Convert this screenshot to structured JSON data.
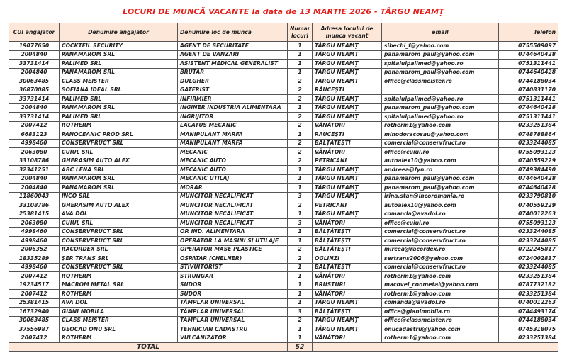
{
  "title": "LOCURI DE MUNCĂ VACANTE  la data de 13 MARTIE 2026 -  TÂRGU NEAMȚ",
  "colors": {
    "title": "#e3211c",
    "header_bg": "#fce7d8"
  },
  "headers": {
    "cui": "CUI angajator",
    "employer": "Denumire angajator",
    "job": "Denumire loc de munca",
    "count": "Numar locuri",
    "address": "Adresa locului de munca vacant",
    "email": "email",
    "phone": "Telefon"
  },
  "rows": [
    [
      "19077650",
      "COCKTEIL SECURITY",
      "AGENT DE SECURITATE",
      "1",
      "TÂRGU NEAMȚ",
      "sibechi_f@yahoo.com",
      "0755509097"
    ],
    [
      "2004840",
      "PANAMAROM SRL",
      "AGENT DE VANZARI",
      "1",
      "TÂRGU NEAMȚ",
      "panamarom_paul@yahoo.com",
      "0744640428"
    ],
    [
      "33731414",
      "PALIMED SRL",
      "ASISTENT MEDICAL GENERALIST",
      "1",
      "TÂRGU NEAMȚ",
      "spitalulpalimed@yahoo.ro",
      "0751311441"
    ],
    [
      "2004840",
      "PANAMAROM SRL",
      "BRUTAR",
      "1",
      "TÂRGU NEAMȚ",
      "panamarom_paul@yahoo.com",
      "0744640428"
    ],
    [
      "30063485",
      "CLASS MEISTER",
      "DULGHER",
      "2",
      "TARGU NEAMT",
      "office@classmeister.ro",
      "0744188034"
    ],
    [
      "36870085",
      "SOFIANA IDEAL SRL",
      "GATERIST",
      "2",
      "RĂUCEȘTI",
      "",
      "0740831170"
    ],
    [
      "33731414",
      "PALIMED SRL",
      "INFIRMIER",
      "2",
      "TÂRGU NEAMȚ",
      "spitalulpalimed@yahoo.ro",
      "0751311441"
    ],
    [
      "2004840",
      "PANAMAROM SRL",
      "INGINER INDUSTRIA ALIMENTARA",
      "1",
      "TÂRGU NEAMȚ",
      "panamarom_paul@yahoo.com",
      "0744640428"
    ],
    [
      "33731414",
      "PALIMED SRL",
      "INGRIJITOR",
      "2",
      "TÂRGU NEAMȚ",
      "spitalulpalimed@yahoo.ro",
      "0751311441"
    ],
    [
      "2007412",
      "ROTHERM",
      "LACATUS MECANIC",
      "2",
      "VÂNĂTORI",
      "rotherm1@yahoo.com",
      "0233251384"
    ],
    [
      "6683123",
      "PANOCEANIC PROD SRL",
      "MANIPULANT MARFA",
      "1",
      "RAUCEȘTI",
      "minodoracosau@yahoo.com",
      "0748788864"
    ],
    [
      "4998460",
      "CONSERVFRUCT SRL",
      "MANIPULANT MARFA",
      "2",
      "BĂLȚĂTEȘTI",
      "comercial@conservfruct.ro",
      "0233244085"
    ],
    [
      "2063080",
      "CUIUL SRL",
      "MECANIC",
      "2",
      "VÂNĂTORI",
      "office@cuiul.ro",
      "0755093123"
    ],
    [
      "33108786",
      "GHERASIM AUTO ALEX",
      "MECANIC AUTO",
      "2",
      "PETRICANI",
      "autoalex10@yahoo.com",
      "0740559229"
    ],
    [
      "32341251",
      "ABC LENA SRL",
      "MECANIC AUTO",
      "1",
      "TÂRGU NEAMȚ",
      "andreea@fyn.ro",
      "0749384490"
    ],
    [
      "2004840",
      "PANAMAROM SRL",
      "MECANIC UTILAJ",
      "1",
      "TÂRGU NEAMȚ",
      "panamarom_paul@yahoo.com",
      "0744640428"
    ],
    [
      "2004840",
      "PANAMAROM SRL",
      "MORAR",
      "1",
      "TÂRGU NEAMȚ",
      "panamarom_paul@yahoo.com",
      "0744640428"
    ],
    [
      "11860043",
      "INCO SRL",
      "MUNCITOR NECALIFICAT",
      "3",
      "TÂRGU NEAMȚ",
      "irina.stan@incoromania.ro",
      "0233790810"
    ],
    [
      "33108786",
      "GHERASIM AUTO ALEX",
      "MUNCITOR NECALIFICAT",
      "2",
      "PETRICANI",
      "autoalex10@yahoo.com",
      "0740559229"
    ],
    [
      "25381415",
      "AVA DOL",
      "MUNCITOR NECALIFICAT",
      "1",
      "TÂRGU NEAMȚ",
      "comanda@avadol.ro",
      "0740012263"
    ],
    [
      "2063080",
      "CUIUL SRL",
      "MUNCITOR NECALIFICAT",
      "3",
      "VÂNĂTORI",
      "office@cuiul.ro",
      "0755093123"
    ],
    [
      "4998460",
      "CONSERVFRUCT SRL",
      "OP. IND. ALIMENTARA",
      "1",
      "BĂLȚĂTEȘTI",
      "comercial@conservfruct.ro",
      "0233244085"
    ],
    [
      "4998460",
      "CONSERVFRUCT SRL",
      "OPERATOR LA MASINI SI UTILAJE",
      "1",
      "BĂLȚĂTEȘTI",
      "comercial@conservfruct.ro",
      "0233244085"
    ],
    [
      "2006352",
      "RACORDEX SRL",
      "OPERATOR MASE PLASTICE",
      "2",
      "BĂLȚĂTEȘTI",
      "mircea@racordex.ro",
      "0722245817"
    ],
    [
      "18335289",
      "ȘER TRANS SRL",
      "OSPATAR (CHELNER)",
      "2",
      "OGLINZI",
      "sertrans2006@yahoo.com",
      "0724002837"
    ],
    [
      "4998460",
      "CONSERVFRUCT SRL",
      "STIVUITORIST",
      "1",
      "BĂLȚĂTEȘTI",
      "comercial@conservfruct.ro",
      "0233244085"
    ],
    [
      "2007412",
      "ROTHERM",
      "STRUNGAR",
      "1",
      "VÂNĂTORI",
      "rotherm1@yahoo.com",
      "0233251384"
    ],
    [
      "19234517",
      "MACROM METAL SRL",
      "SUDOR",
      "1",
      "BRUSTURI",
      "macovei_conmetal@yahoo.com",
      "0787732182"
    ],
    [
      "2007412",
      "ROTHERM",
      "SUDOR",
      "1",
      "VÂNĂTORI",
      "rotherm1@yahoo.com",
      "0233251384"
    ],
    [
      "25381415",
      "AVA DOL",
      "TÂMPLAR UNIVERSAL",
      "1",
      "TÂRGU NEAMȚ",
      "comanda@avadol.ro",
      "0740012263"
    ],
    [
      "16732940",
      "GIANI MOBILA",
      "TÂMPLAR UNIVERSAL",
      "3",
      "BĂLȚĂTEȘTI",
      "office@gianimobila.ro",
      "0744493174"
    ],
    [
      "30063485",
      "CLASS MEISTER",
      "TÂMPLAR UNIVERSAL",
      "2",
      "TÂRGU NEAMȚ",
      "office@classmeister.ro",
      "0744188034"
    ],
    [
      "37556987",
      "GEOCAD ONU SRL",
      "TEHNICIAN CADASTRU",
      "1",
      "TÂRGU NEAMȚ",
      "onucadastru@yahoo.com",
      "0745318075"
    ],
    [
      "2007412",
      "ROTHERM",
      "VULCANIZATOR",
      "1",
      "VÂNĂTORI",
      "rotherm1@yahoo.com",
      "0233251384"
    ]
  ],
  "total": {
    "label": "TOTAL",
    "value": "52"
  }
}
